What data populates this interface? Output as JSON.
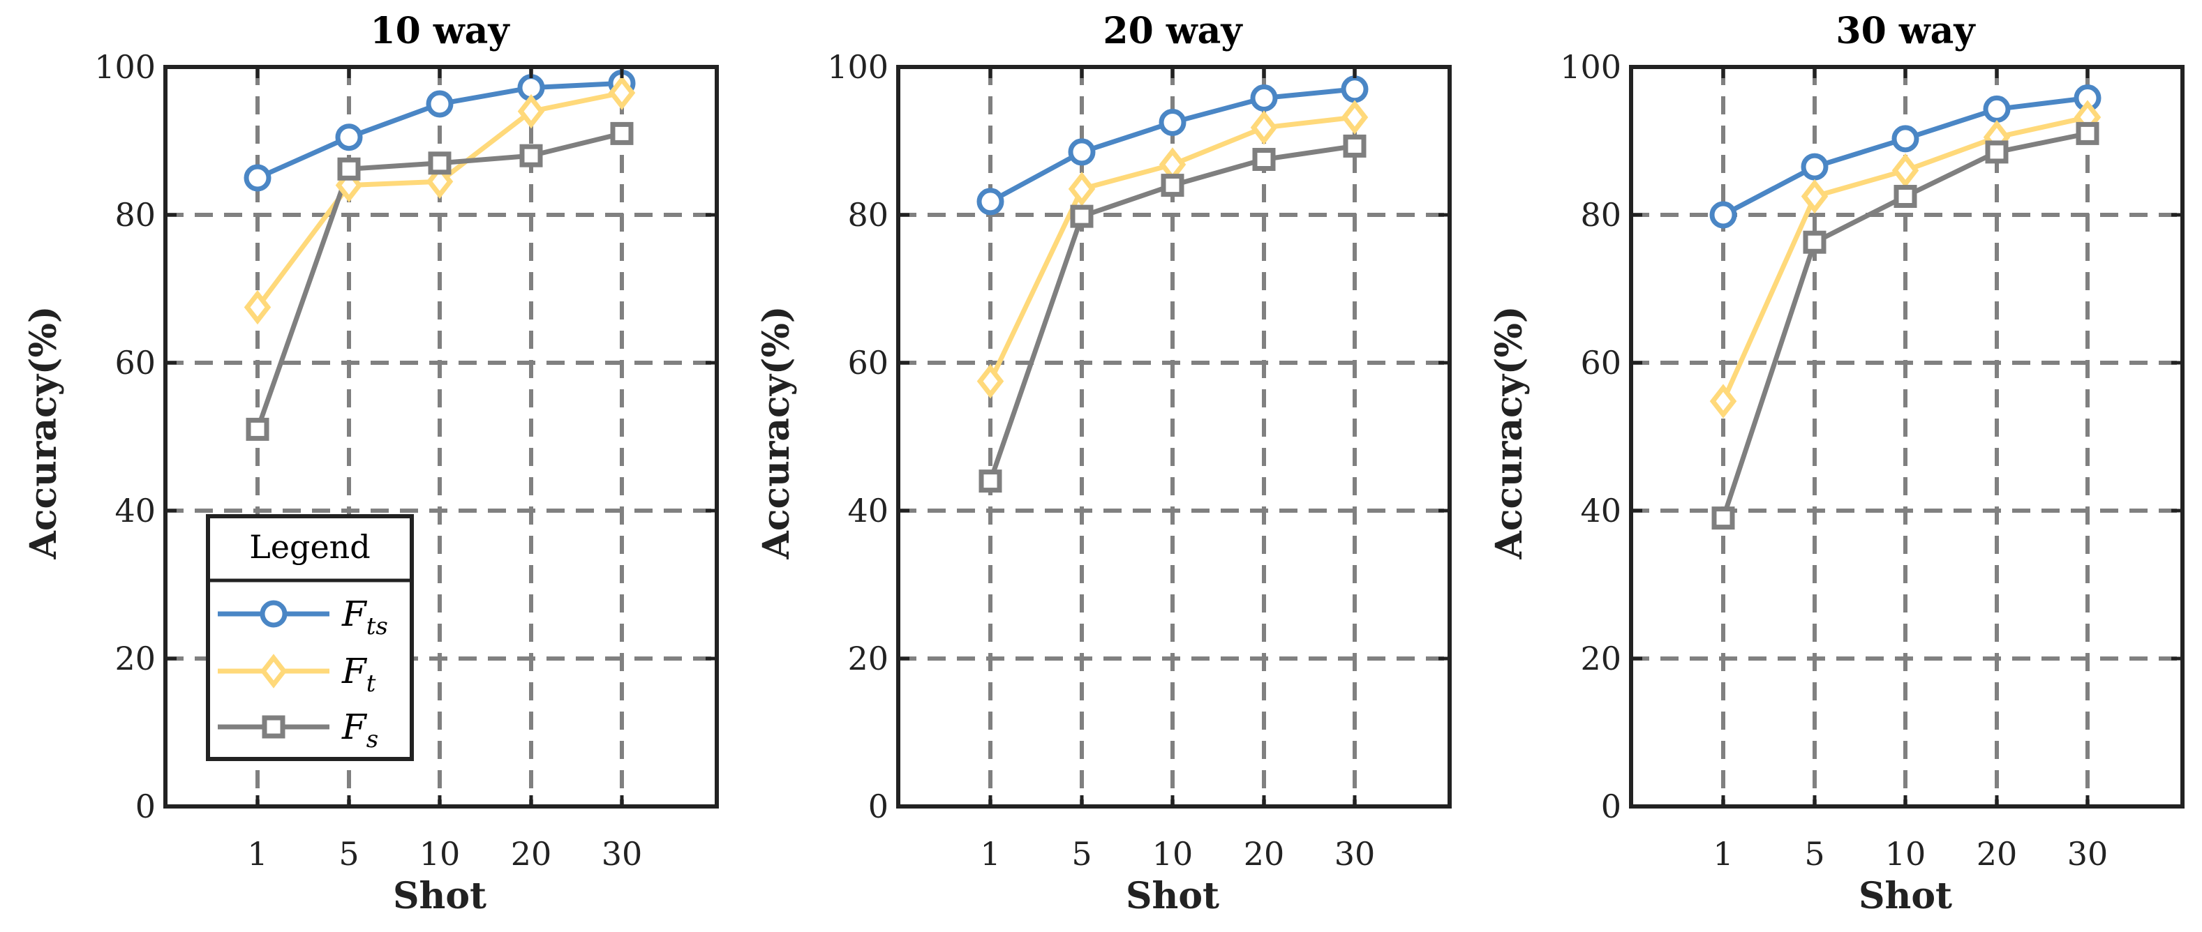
{
  "chart_data": [
    {
      "type": "line",
      "title": "10 way",
      "xlabel": "Shot",
      "ylabel": "Accuracy(%)",
      "categories": [
        "1",
        "5",
        "10",
        "20",
        "30"
      ],
      "ylim": [
        0,
        100
      ],
      "yticks": [
        "0",
        "20",
        "40",
        "60",
        "80",
        "100"
      ],
      "grid": true,
      "series": [
        {
          "name": "F_ts",
          "values": [
            85.0,
            90.5,
            95.0,
            97.2,
            97.8
          ]
        },
        {
          "name": "F_t",
          "values": [
            67.5,
            84.0,
            84.5,
            94.0,
            96.5
          ]
        },
        {
          "name": "F_s",
          "values": [
            51.0,
            86.2,
            87.0,
            88.0,
            91.0
          ]
        }
      ]
    },
    {
      "type": "line",
      "title": "20 way",
      "xlabel": "Shot",
      "ylabel": "Accuracy(%)",
      "categories": [
        "1",
        "5",
        "10",
        "20",
        "30"
      ],
      "ylim": [
        0,
        100
      ],
      "yticks": [
        "0",
        "20",
        "40",
        "60",
        "80",
        "100"
      ],
      "grid": true,
      "series": [
        {
          "name": "F_ts",
          "values": [
            81.8,
            88.5,
            92.5,
            95.8,
            97.0
          ]
        },
        {
          "name": "F_t",
          "values": [
            57.5,
            83.5,
            86.8,
            91.8,
            93.2
          ]
        },
        {
          "name": "F_s",
          "values": [
            44.0,
            79.8,
            84.0,
            87.5,
            89.3
          ]
        }
      ]
    },
    {
      "type": "line",
      "title": "30 way",
      "xlabel": "Shot",
      "ylabel": "Accuracy(%)",
      "categories": [
        "1",
        "5",
        "10",
        "20",
        "30"
      ],
      "ylim": [
        0,
        100
      ],
      "yticks": [
        "0",
        "20",
        "40",
        "60",
        "80",
        "100"
      ],
      "grid": true,
      "series": [
        {
          "name": "F_ts",
          "values": [
            80.0,
            86.5,
            90.3,
            94.3,
            95.8
          ]
        },
        {
          "name": "F_t",
          "values": [
            54.8,
            82.5,
            86.0,
            90.5,
            93.2
          ]
        },
        {
          "name": "F_s",
          "values": [
            39.0,
            76.3,
            82.5,
            88.5,
            91.0
          ]
        }
      ]
    }
  ],
  "legend": {
    "title": "Legend",
    "placement": "bottom-left of first panel",
    "entries": [
      {
        "base": "F",
        "sub": "ts",
        "color": "#4a86c5",
        "marker": "circle"
      },
      {
        "base": "F",
        "sub": "t",
        "color": "#ffd97a",
        "marker": "diamond"
      },
      {
        "base": "F",
        "sub": "s",
        "color": "#7f7f7f",
        "marker": "square"
      }
    ]
  },
  "colors": {
    "series": [
      "#4a86c5",
      "#ffd97a",
      "#7f7f7f"
    ],
    "axis": "#222222",
    "grid": "#808080"
  }
}
